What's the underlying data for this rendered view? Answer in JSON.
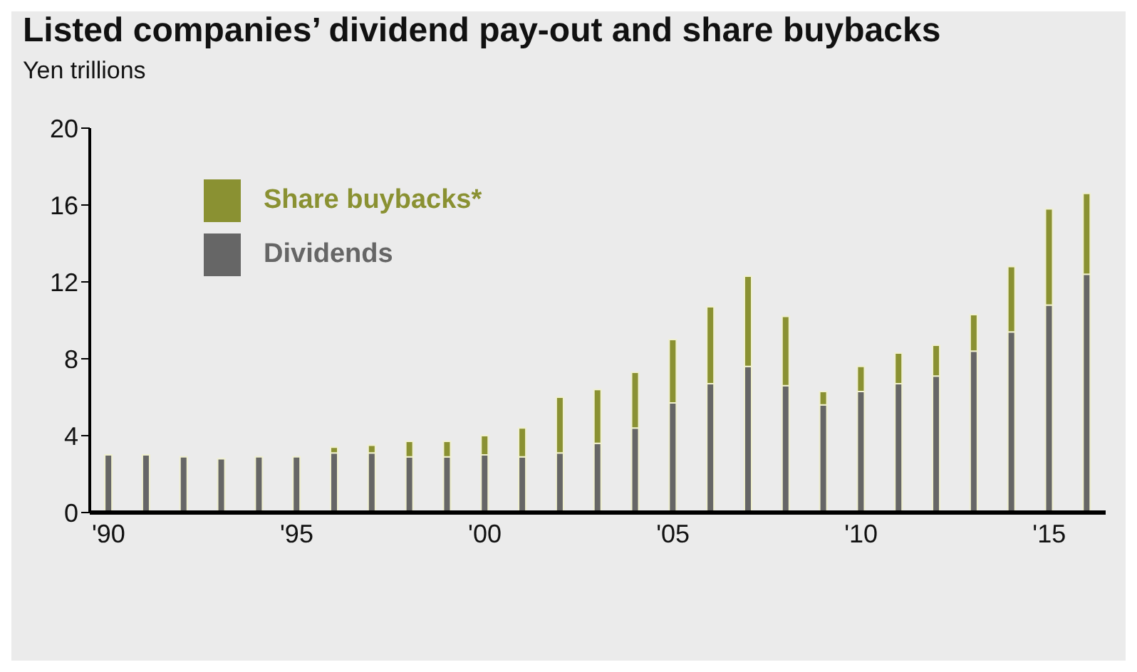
{
  "chart_data": {
    "type": "bar",
    "title": "Listed companies’ dividend pay-out and share buybacks",
    "ylabel": "Yen trillions",
    "stacked": true,
    "categories": [
      "'90",
      null,
      null,
      null,
      null,
      "'95",
      null,
      null,
      null,
      null,
      "'00",
      null,
      null,
      null,
      null,
      "'05",
      null,
      null,
      null,
      null,
      "'10",
      null,
      null,
      null,
      null,
      "'15",
      null
    ],
    "series": [
      {
        "name": "Dividends",
        "color": "#666666",
        "values": [
          3.0,
          3.0,
          2.9,
          2.8,
          2.9,
          2.9,
          3.1,
          3.1,
          2.9,
          2.9,
          3.0,
          2.9,
          3.1,
          3.6,
          4.4,
          5.7,
          6.7,
          7.6,
          6.6,
          5.6,
          6.3,
          6.7,
          7.1,
          8.4,
          9.4,
          10.8,
          12.4
        ]
      },
      {
        "name": "Share buybacks*",
        "color": "#8a9132",
        "values": [
          0,
          0,
          0,
          0,
          0,
          0,
          0.3,
          0.4,
          0.8,
          0.8,
          1.0,
          1.5,
          2.9,
          2.8,
          2.9,
          3.3,
          4.0,
          4.7,
          3.6,
          0.7,
          1.3,
          1.6,
          1.6,
          1.9,
          3.4,
          5.0,
          4.2
        ]
      }
    ],
    "ylim": [
      0,
      20
    ],
    "yticks": [
      0,
      4,
      8,
      12,
      16,
      20
    ],
    "grid": false,
    "legend": "top left"
  }
}
